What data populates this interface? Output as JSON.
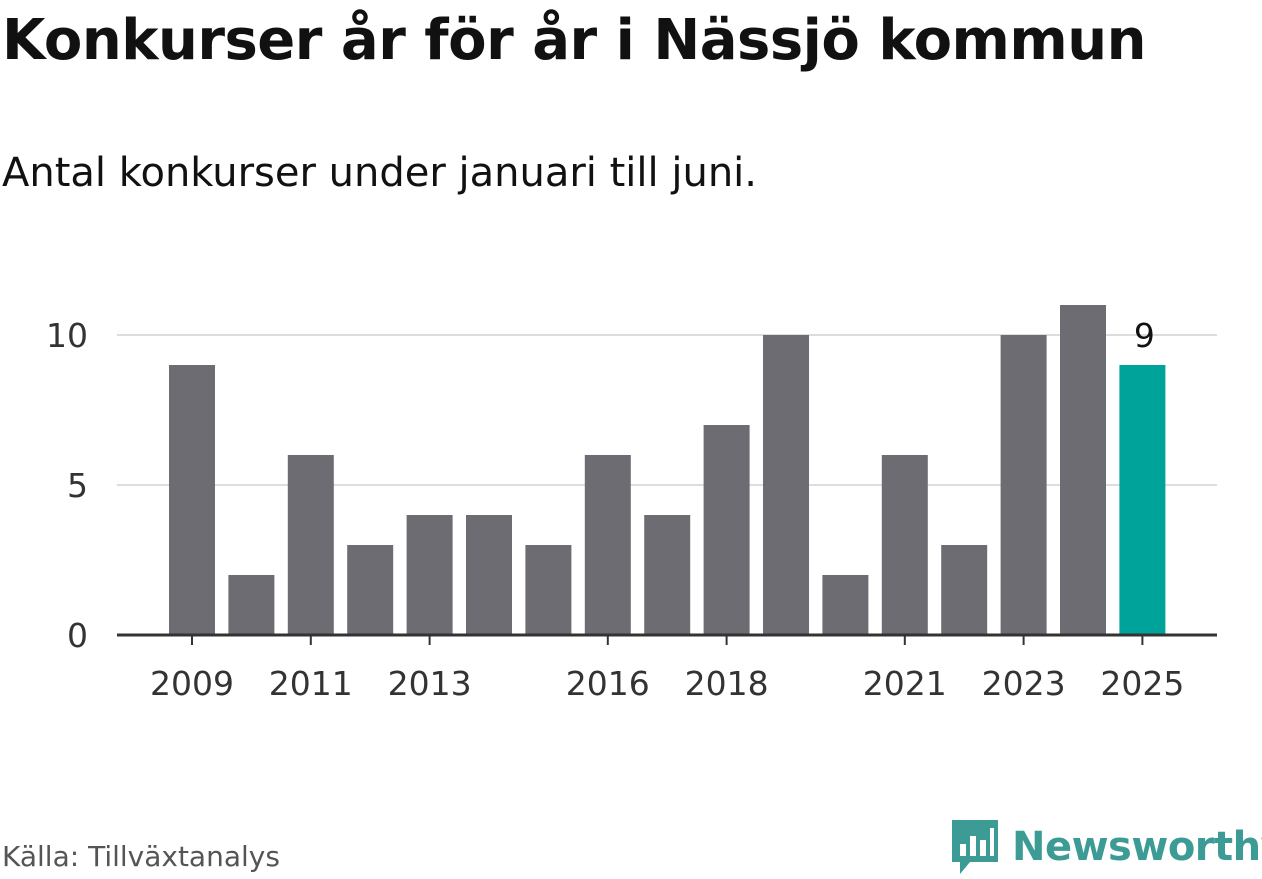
{
  "title": "Konkurser år för år i Nässjö kommun",
  "subtitle": "Antal konkurser under januari till juni.",
  "source": "Källa: Tillväxtanalys",
  "logo": {
    "text": "Newsworthy",
    "icon": "bar-chart-speech-icon",
    "color": "#3d9b95"
  },
  "colors": {
    "bar": "#6d6c72",
    "highlight": "#00a39a",
    "grid": "#dddddd",
    "axis": "#333333"
  },
  "chart_data": {
    "type": "bar",
    "categories": [
      "2009",
      "2010",
      "2011",
      "2012",
      "2013",
      "2014",
      "2015",
      "2016",
      "2017",
      "2018",
      "2019",
      "2020",
      "2021",
      "2022",
      "2023",
      "2024",
      "2025"
    ],
    "values": [
      9,
      2,
      6,
      3,
      4,
      4,
      3,
      6,
      4,
      7,
      10,
      2,
      6,
      3,
      10,
      11,
      9
    ],
    "x_tick_labels": [
      "2009",
      "2011",
      "2013",
      "2016",
      "2018",
      "2021",
      "2023",
      "2025"
    ],
    "y_ticks": [
      "0",
      "5",
      "10"
    ],
    "ylim": [
      0,
      11
    ],
    "highlight_category": "2025",
    "data_labels": [
      {
        "category": "2025",
        "text": "9"
      }
    ],
    "grid": true,
    "xlabel": "",
    "ylabel": ""
  }
}
